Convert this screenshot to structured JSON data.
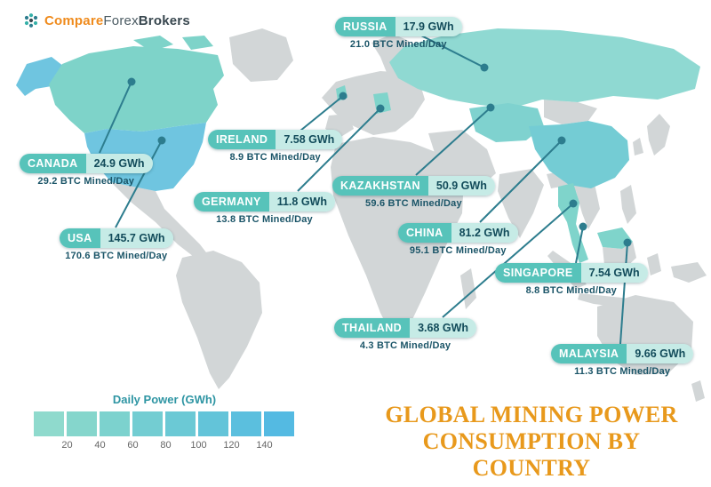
{
  "logo": {
    "icon": "dots-cluster-icon",
    "part1": "Compare",
    "part2": "Forex",
    "part3": "Brokers"
  },
  "title": {
    "line1": "GLOBAL MINING POWER",
    "line2": "CONSUMPTION BY COUNTRY"
  },
  "legend": {
    "label": "Daily Power (GWh)",
    "ticks": [
      "20",
      "40",
      "60",
      "80",
      "100",
      "120",
      "140"
    ],
    "colors": [
      "#8fdacd",
      "#85d6cc",
      "#7cd2ce",
      "#73cdd2",
      "#6bc9d5",
      "#63c4d9",
      "#5bbfde",
      "#54bae2"
    ]
  },
  "colors": {
    "accent_orange": "#e8991c",
    "pill_teal": "#57c3ba",
    "pill_light_teal": "#c6ebe6",
    "connector_line": "#2d7d8e",
    "map_gray": "#d2d6d7",
    "highlight_teal": "#7fd4cb",
    "usa_blue": "#6fc5e0"
  },
  "countries": [
    {
      "name": "RUSSIA",
      "power": "17.9 GWh",
      "btc": "21.0 BTC Mined/Day"
    },
    {
      "name": "IRELAND",
      "power": "7.58 GWh",
      "btc": "8.9 BTC Mined/Day"
    },
    {
      "name": "CANADA",
      "power": "24.9 GWh",
      "btc": "29.2 BTC Mined/Day"
    },
    {
      "name": "USA",
      "power": "145.7 GWh",
      "btc": "170.6 BTC Mined/Day"
    },
    {
      "name": "GERMANY",
      "power": "11.8 GWh",
      "btc": "13.8 BTC Mined/Day"
    },
    {
      "name": "KAZAKHSTAN",
      "power": "50.9 GWh",
      "btc": "59.6 BTC Mined/Day"
    },
    {
      "name": "CHINA",
      "power": "81.2 GWh",
      "btc": "95.1 BTC Mined/Day"
    },
    {
      "name": "SINGAPORE",
      "power": "7.54 GWh",
      "btc": "8.8 BTC Mined/Day"
    },
    {
      "name": "THAILAND",
      "power": "3.68 GWh",
      "btc": "4.3 BTC Mined/Day"
    },
    {
      "name": "MALAYSIA",
      "power": "9.66 GWh",
      "btc": "11.3 BTC Mined/Day"
    }
  ],
  "chart_data": {
    "type": "map",
    "title": "Global Mining Power Consumption by Country",
    "legend_label": "Daily Power (GWh)",
    "legend_ticks": [
      20,
      40,
      60,
      80,
      100,
      120,
      140
    ],
    "unit": "GWh",
    "series": [
      {
        "country": "Russia",
        "power_gwh": 17.9,
        "btc_mined_per_day": 21.0
      },
      {
        "country": "Ireland",
        "power_gwh": 7.58,
        "btc_mined_per_day": 8.9
      },
      {
        "country": "Canada",
        "power_gwh": 24.9,
        "btc_mined_per_day": 29.2
      },
      {
        "country": "USA",
        "power_gwh": 145.7,
        "btc_mined_per_day": 170.6
      },
      {
        "country": "Germany",
        "power_gwh": 11.8,
        "btc_mined_per_day": 13.8
      },
      {
        "country": "Kazakhstan",
        "power_gwh": 50.9,
        "btc_mined_per_day": 59.6
      },
      {
        "country": "China",
        "power_gwh": 81.2,
        "btc_mined_per_day": 95.1
      },
      {
        "country": "Singapore",
        "power_gwh": 7.54,
        "btc_mined_per_day": 8.8
      },
      {
        "country": "Thailand",
        "power_gwh": 3.68,
        "btc_mined_per_day": 4.3
      },
      {
        "country": "Malaysia",
        "power_gwh": 9.66,
        "btc_mined_per_day": 11.3
      }
    ]
  }
}
